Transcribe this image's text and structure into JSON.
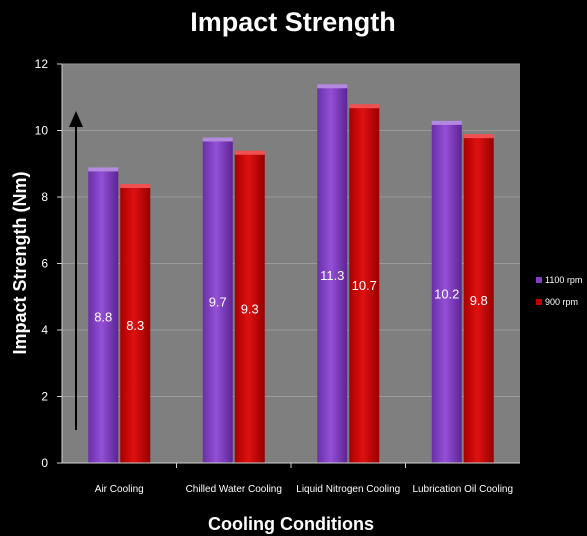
{
  "chart_data": {
    "type": "bar",
    "title": "Impact Strength",
    "xlabel": "Cooling Conditions",
    "ylabel": "Impact Strength (Nm)",
    "categories": [
      "Air Cooling",
      "Chilled Water Cooling",
      "Liquid Nitrogen Cooling",
      "Lubrication Oil Cooling"
    ],
    "series": [
      {
        "name": "1100 rpm",
        "values": [
          8.8,
          9.7,
          11.3,
          10.2
        ],
        "color": "#7f3fbf"
      },
      {
        "name": "900 rpm",
        "values": [
          8.3,
          9.3,
          10.7,
          9.8
        ],
        "color": "#c00000"
      }
    ],
    "ylim": [
      0,
      12
    ],
    "yticks": [
      0,
      2,
      4,
      6,
      8,
      10,
      12
    ],
    "grid": true,
    "legend_position": "right",
    "data_labels": true,
    "colors": {
      "background": "#000000",
      "plot_area": "#7f7f7f",
      "gridline": "#9a9a9a",
      "text": "#ffffff"
    }
  }
}
